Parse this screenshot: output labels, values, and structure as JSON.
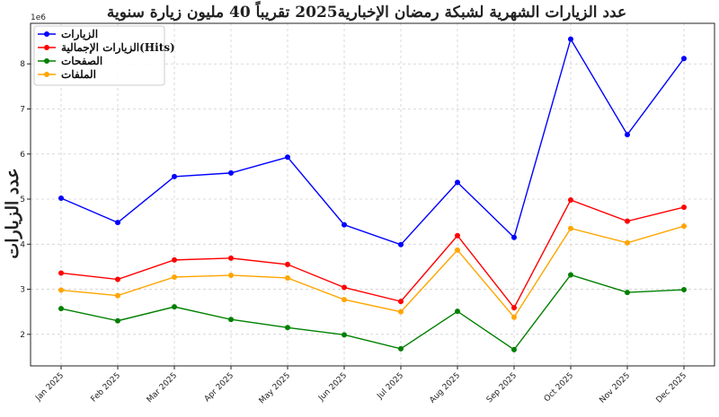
{
  "chart_data": {
    "type": "line",
    "title": "عدد الزيارات الشهرية لشبكة رمضان الإخبارية2025 تقريباً 40 مليون زيارة سنوية",
    "xlabel": "",
    "ylabel": "عدد الزيارات",
    "y_offset_label": "1e6",
    "categories": [
      "Jan 2025",
      "Feb 2025",
      "Mar 2025",
      "Apr 2025",
      "May 2025",
      "Jun 2025",
      "Jul 2025",
      "Aug 2025",
      "Sep 2025",
      "Oct 2025",
      "Nov 2025",
      "Dec 2025"
    ],
    "ylim": [
      1.3,
      8.9
    ],
    "yticks": [
      2,
      3,
      4,
      5,
      6,
      7,
      8
    ],
    "grid": true,
    "legend_position": "top-left",
    "series": [
      {
        "name": "الزيارات",
        "color": "#0000ff",
        "values": [
          5.02,
          4.48,
          5.5,
          5.58,
          5.93,
          4.43,
          3.99,
          5.37,
          4.15,
          8.55,
          6.43,
          8.12
        ]
      },
      {
        "name": "الزيارات الإجمالية(Hits)",
        "color": "#ff0000",
        "values": [
          3.36,
          3.22,
          3.65,
          3.69,
          3.55,
          3.04,
          2.73,
          4.19,
          2.59,
          4.98,
          4.51,
          4.82
        ]
      },
      {
        "name": "الصفحات",
        "color": "#008000",
        "values": [
          2.57,
          2.3,
          2.61,
          2.33,
          2.15,
          1.99,
          1.68,
          2.51,
          1.66,
          3.32,
          2.93,
          2.99
        ]
      },
      {
        "name": "الملفات",
        "color": "#ffa500",
        "values": [
          2.98,
          2.86,
          3.27,
          3.31,
          3.25,
          2.77,
          2.5,
          3.87,
          2.38,
          4.35,
          4.03,
          4.4
        ]
      }
    ]
  }
}
